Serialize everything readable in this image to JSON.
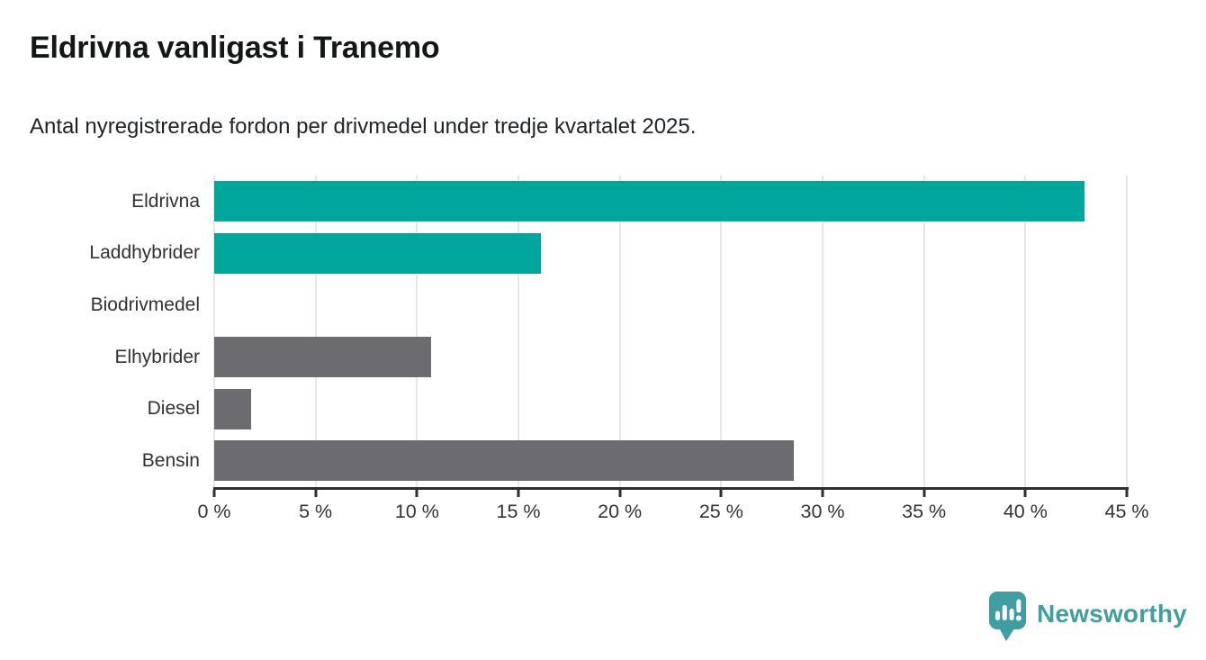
{
  "header": {
    "title": "Eldrivna vanligast i Tranemo",
    "subtitle": "Antal nyregistrerade fordon per drivmedel under tredje kvartalet 2025."
  },
  "chart_data": {
    "type": "bar",
    "orientation": "horizontal",
    "title": "Eldrivna vanligast i Tranemo",
    "subtitle": "Antal nyregistrerade fordon per drivmedel under tredje kvartalet 2025.",
    "categories": [
      "Eldrivna",
      "Laddhybrider",
      "Biodrivmedel",
      "Elhybrider",
      "Diesel",
      "Bensin"
    ],
    "values": [
      42.9,
      16.1,
      0,
      10.7,
      1.8,
      28.6
    ],
    "unit": "%",
    "bar_colors": [
      "#00a59b",
      "#00a59b",
      "#6b6b70",
      "#6b6b70",
      "#6b6b70",
      "#6b6b70"
    ],
    "highlight_color": "#00a59b",
    "default_color": "#6b6b70",
    "xlabel": "",
    "ylabel": "",
    "xlim": [
      0,
      45
    ],
    "x_ticks": [
      0,
      5,
      10,
      15,
      20,
      25,
      30,
      35,
      40,
      45
    ],
    "x_tick_labels": [
      "0 %",
      "5 %",
      "10 %",
      "15 %",
      "20 %",
      "25 %",
      "30 %",
      "35 %",
      "40 %",
      "45 %"
    ],
    "grid": "vertical-gridlines-on",
    "gridline_color": "#e7e7e7",
    "axis_color": "#2e2e2e",
    "legend": "none"
  },
  "footer": {
    "brand": "Newsworthy",
    "brand_color": "#3f9ea1",
    "logo_icon": "newsworthy-speech-bubble-bar-chart-icon"
  }
}
